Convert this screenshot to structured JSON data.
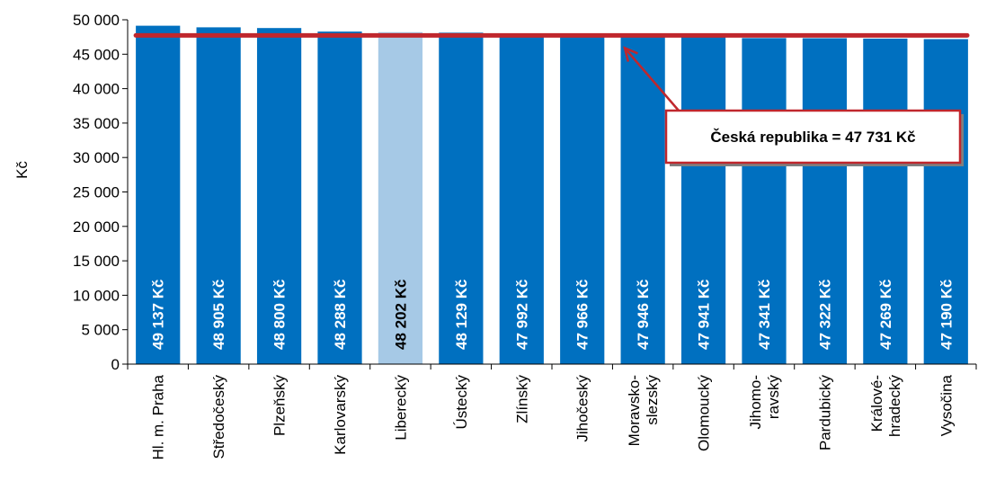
{
  "chart_data": {
    "type": "bar",
    "ylabel": "Kč",
    "ylim": [
      0,
      50000
    ],
    "yticks": [
      0,
      5000,
      10000,
      15000,
      20000,
      25000,
      30000,
      35000,
      40000,
      45000,
      50000
    ],
    "ytick_labels": [
      "0",
      "5 000",
      "10 000",
      "15 000",
      "20 000",
      "25 000",
      "30 000",
      "35 000",
      "40 000",
      "45 000",
      "50 000"
    ],
    "categories": [
      [
        "Hl. m. Praha"
      ],
      [
        "Středočeský"
      ],
      [
        "Plzeňský"
      ],
      [
        "Karlovarský"
      ],
      [
        "Liberecký"
      ],
      [
        "Ústecký"
      ],
      [
        "Zlínský"
      ],
      [
        "Jihočeský"
      ],
      [
        "Moravsko-",
        "slezský"
      ],
      [
        "Olomoucký"
      ],
      [
        "Jihomo-",
        "ravský"
      ],
      [
        "Pardubický"
      ],
      [
        "Králové-",
        "hradecký"
      ],
      [
        "Vysočina"
      ]
    ],
    "values": [
      49137,
      48905,
      48800,
      48288,
      48202,
      48129,
      47992,
      47966,
      47946,
      47941,
      47341,
      47322,
      47269,
      47190
    ],
    "value_labels": [
      "49 137 Kč",
      "48 905 Kč",
      "48 800 Kč",
      "48 288 Kč",
      "48 202 Kč",
      "48 129 Kč",
      "47 992 Kč",
      "47 966 Kč",
      "47 946 Kč",
      "47 941 Kč",
      "47 341 Kč",
      "47 322 Kč",
      "47 269 Kč",
      "47 190 Kč"
    ],
    "highlight_index": 4,
    "reference_line": {
      "value": 47731,
      "label": "Česká republika = 47 731 Kč",
      "color": "#c0272d"
    },
    "colors": {
      "bar": "#0070c0",
      "highlight": "#a6c9e6",
      "label_on_bar": "#ffffff",
      "label_highlight": "#000000"
    },
    "grid": false
  }
}
